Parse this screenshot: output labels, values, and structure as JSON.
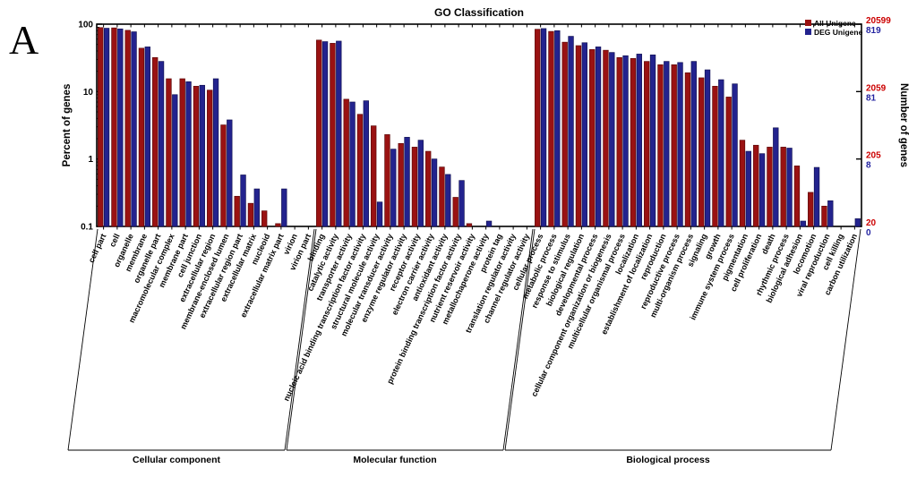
{
  "panel_label": "A",
  "chart_data": {
    "type": "bar",
    "title": "GO Classification",
    "ylabel_left": "Percent of genes",
    "ylabel_right": "Number of genes",
    "y_scale": "log",
    "ylim": [
      0.1,
      100
    ],
    "grid": false,
    "legend_position": "top-right-inside",
    "legend": [
      {
        "label": "All Unigene",
        "color": "#9a1212"
      },
      {
        "label": "DEG Unigene",
        "color": "#23238e"
      }
    ],
    "left_ticks": [
      {
        "label": "100",
        "value": 100
      },
      {
        "label": "10",
        "value": 10
      },
      {
        "label": "1",
        "value": 1
      },
      {
        "label": "0.1",
        "value": 0.1
      }
    ],
    "right_ticks": [
      {
        "red": "20599",
        "blue": "819",
        "value": 100
      },
      {
        "red": "2059",
        "blue": "81",
        "value": 10
      },
      {
        "red": "205",
        "blue": "8",
        "value": 1
      },
      {
        "red": "20",
        "blue": "0",
        "value": 0.1
      }
    ],
    "groups": [
      {
        "name": "Cellular component",
        "categories": [
          "cell part",
          "cell",
          "organelle",
          "membrane",
          "organelle part",
          "macromolecular complex",
          "membrane part",
          "cell junction",
          "extracellular region",
          "membrane-enclosed lumen",
          "extracellular region part",
          "extracellular matrix",
          "nucleoid",
          "extracellular matrix part",
          "virion",
          "virion part"
        ],
        "all_unigene": [
          89,
          88,
          81,
          44,
          32,
          15.5,
          15.5,
          12,
          10.5,
          3.2,
          0.28,
          0.22,
          0.17,
          0.11,
          0,
          0
        ],
        "deg_unigene": [
          87,
          85,
          77,
          46,
          28,
          9,
          14,
          12.4,
          15.5,
          3.8,
          0.58,
          0.36,
          0,
          0.36,
          0,
          0
        ]
      },
      {
        "name": "Molecular function",
        "categories": [
          "binding",
          "catalytic activity",
          "transporter activity",
          "nucleic acid binding transcription factor activity",
          "structural molecule activity",
          "molecular transducer activity",
          "enzyme regulator activity",
          "receptor activity",
          "electron carrier activity",
          "antioxidant activity",
          "protein binding transcription factor activity",
          "nutrient reservoir activity",
          "metallochaperone activity",
          "protein tag",
          "translation regulator activity",
          "channel regulator activity"
        ],
        "all_unigene": [
          58,
          52,
          7.7,
          4.6,
          3.1,
          2.3,
          1.7,
          1.5,
          1.3,
          0.76,
          0.27,
          0.11,
          0,
          0,
          0,
          0
        ],
        "deg_unigene": [
          55,
          56,
          7.0,
          7.3,
          0.23,
          1.4,
          2.1,
          1.9,
          1.0,
          0.59,
          0.48,
          0,
          0.12,
          0,
          0,
          0
        ]
      },
      {
        "name": "Biological process",
        "categories": [
          "cellular process",
          "metabolic process",
          "response to stimulus",
          "biological regulation",
          "developmental process",
          "cellular component organization or biogenesis",
          "multicellular organismal process",
          "localization",
          "establishment of localization",
          "reproduction",
          "reproductive process",
          "multi-organism process",
          "signaling",
          "growth",
          "immune system process",
          "pigmentation",
          "cell proliferation",
          "death",
          "rhythmic process",
          "biological adhesion",
          "locomotion",
          "viral reproduction",
          "cell killing",
          "carbon utilization"
        ],
        "all_unigene": [
          84,
          78,
          54,
          48,
          42,
          41,
          32,
          31,
          28,
          25,
          25,
          19,
          16,
          12,
          8.3,
          1.9,
          1.6,
          1.5,
          1.5,
          0.79,
          0.32,
          0.2,
          0,
          0
        ],
        "deg_unigene": [
          86,
          80,
          66,
          53,
          46,
          38,
          34,
          36,
          35,
          28,
          27,
          28,
          21,
          15,
          13,
          1.3,
          1.2,
          2.9,
          1.45,
          0.12,
          0.75,
          0.24,
          0,
          0.13
        ]
      }
    ]
  },
  "colors": {
    "all_unigene": "#9a1212",
    "all_unigene_edge": "#5f0a0a",
    "deg_unigene": "#23238e",
    "deg_unigene_edge": "#121254",
    "axis": "#000000",
    "right_tick_red": "#cc0000",
    "right_tick_blue": "#2323a0"
  }
}
